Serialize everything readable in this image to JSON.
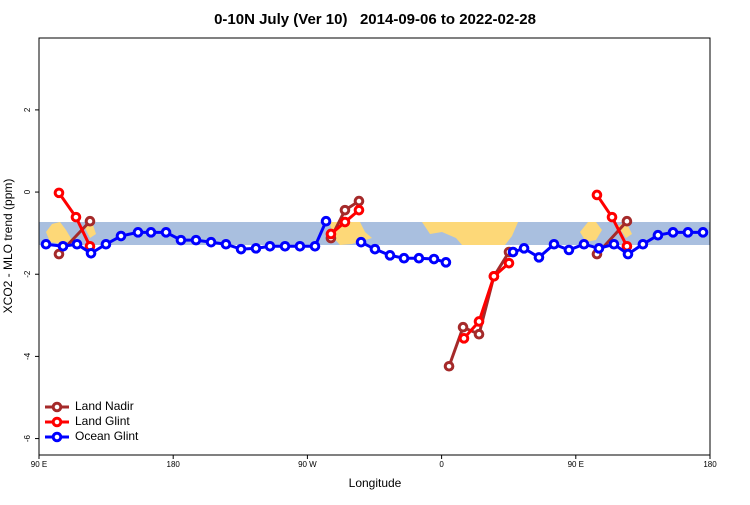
{
  "chart_data": {
    "type": "line",
    "title": "0-10N July (Ver 10)   2014-09-06 to 2022-02-28",
    "x_label": "Longitude",
    "y_label": "XCO2 - MLO trend (ppm)",
    "xlim": [
      90,
      540
    ],
    "xticks": [
      {
        "value": 90,
        "label": "90 E"
      },
      {
        "value": 180,
        "label": "180"
      },
      {
        "value": 270,
        "label": "90 W"
      },
      {
        "value": 360,
        "label": "0"
      },
      {
        "value": 450,
        "label": "90 E"
      },
      {
        "value": 540,
        "label": "180"
      }
    ],
    "ylim": [
      -6.4,
      3.75
    ],
    "yticks": [
      -6,
      -4,
      -2,
      0,
      2
    ],
    "legend": "bottom-left",
    "series": [
      {
        "name": "Land Nadir",
        "color": "#a52a2a",
        "x": [
          103.4,
          124.2,
          205,
          285.8,
          295.2,
          304.6,
          335,
          365,
          374.4,
          385.1,
          395.1,
          405.2,
          435,
          464.2,
          484.3
        ],
        "values": [
          -1.51,
          -0.71,
          null,
          -1.12,
          -0.44,
          -0.22,
          null,
          -4.24,
          -3.29,
          -3.46,
          -2.05,
          -1.46,
          null,
          -1.51,
          -0.71
        ]
      },
      {
        "name": "Land Glint",
        "color": "#ff0000",
        "x": [
          103.4,
          114.8,
          124.2,
          205,
          285.8,
          295.2,
          304.6,
          340,
          375,
          385.1,
          395.1,
          405.2,
          435,
          464.2,
          474.3,
          484.3
        ],
        "values": [
          -0.02,
          -0.61,
          -1.32,
          null,
          -1.02,
          -0.73,
          -0.44,
          null,
          -3.56,
          -3.15,
          -2.05,
          -1.73,
          null,
          -0.07,
          -0.61,
          -1.32
        ]
      },
      {
        "name": "Ocean Glint",
        "color": "#0000ff",
        "x": [
          94.7,
          106.1,
          115.5,
          124.9,
          134.9,
          145.0,
          156.4,
          165.1,
          175.2,
          185.2,
          195.3,
          205.4,
          215.4,
          225.5,
          235.5,
          244.9,
          255,
          265,
          275.1,
          282.5,
          294,
          306,
          315.3,
          325.4,
          334.8,
          344.8,
          354.9,
          362.9,
          385,
          407.9,
          415.3,
          425.3,
          435.4,
          445.4,
          455.5,
          465.5,
          475.6,
          485,
          495,
          505.1,
          515.2,
          525.2,
          535.3
        ],
        "values": [
          -1.27,
          -1.32,
          -1.27,
          -1.49,
          -1.27,
          -1.07,
          -0.98,
          -0.98,
          -0.98,
          -1.17,
          -1.17,
          -1.22,
          -1.27,
          -1.39,
          -1.37,
          -1.32,
          -1.32,
          -1.32,
          -1.32,
          -0.71,
          null,
          -1.22,
          -1.39,
          -1.54,
          -1.61,
          -1.61,
          -1.63,
          -1.71,
          null,
          -1.46,
          -1.37,
          -1.59,
          -1.27,
          -1.41,
          -1.27,
          -1.37,
          -1.27,
          -1.51,
          -1.27,
          -1.05,
          -0.98,
          -0.98,
          -0.98
        ]
      }
    ]
  }
}
